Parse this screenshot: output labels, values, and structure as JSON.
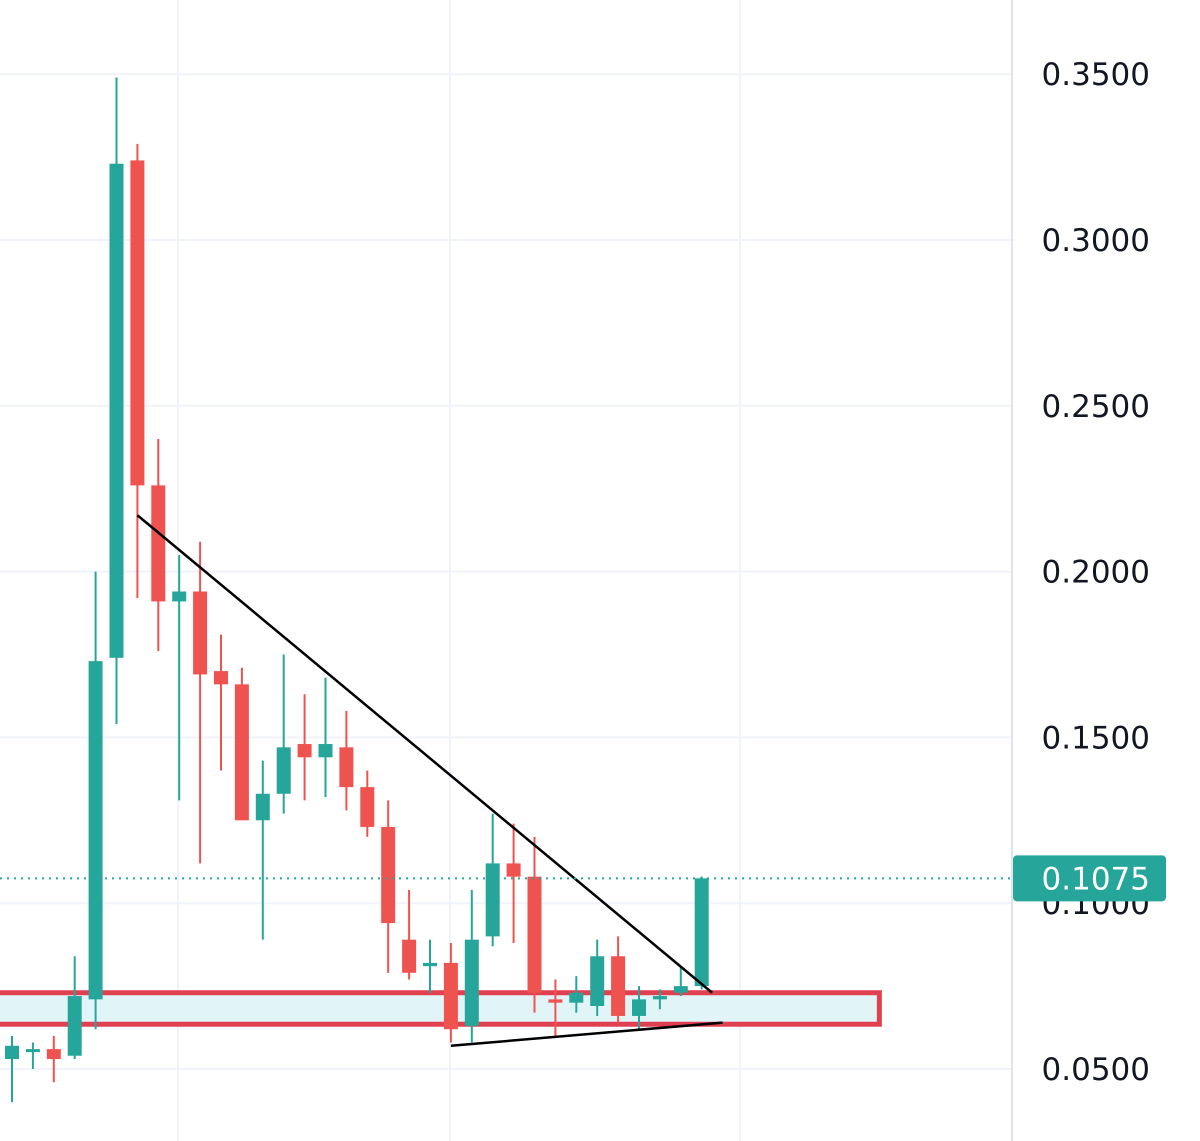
{
  "colors": {
    "up": "#26a69a",
    "down": "#ef5350",
    "grid": "#f0f3fa",
    "axis_line": "#e0e3eb",
    "trendline": "#000000",
    "zone_fill": "#e1f5f9",
    "zone_border": "#e0404f",
    "current_price_line": "#26a69a",
    "badge": "#26a69a"
  },
  "chart_data": {
    "type": "candlestick",
    "y_axis": {
      "position": "right",
      "ylim": [
        0.03,
        0.37
      ],
      "ticks": [
        "0.0500",
        "0.1000",
        "0.1500",
        "0.2000",
        "0.2500",
        "0.3000",
        "0.3500"
      ],
      "tick_values": [
        0.05,
        0.1,
        0.15,
        0.2,
        0.25,
        0.3,
        0.35
      ]
    },
    "current_price": {
      "value": 0.1075,
      "label": "0.1075"
    },
    "candles": [
      {
        "o": 0.053,
        "h": 0.06,
        "l": 0.04,
        "c": 0.057
      },
      {
        "o": 0.056,
        "h": 0.058,
        "l": 0.05,
        "c": 0.056
      },
      {
        "o": 0.056,
        "h": 0.06,
        "l": 0.046,
        "c": 0.053
      },
      {
        "o": 0.054,
        "h": 0.084,
        "l": 0.053,
        "c": 0.072
      },
      {
        "o": 0.071,
        "h": 0.2,
        "l": 0.062,
        "c": 0.173
      },
      {
        "o": 0.174,
        "h": 0.349,
        "l": 0.154,
        "c": 0.323
      },
      {
        "o": 0.324,
        "h": 0.329,
        "l": 0.192,
        "c": 0.226
      },
      {
        "o": 0.226,
        "h": 0.24,
        "l": 0.176,
        "c": 0.191
      },
      {
        "o": 0.191,
        "h": 0.205,
        "l": 0.131,
        "c": 0.194
      },
      {
        "o": 0.194,
        "h": 0.209,
        "l": 0.112,
        "c": 0.169
      },
      {
        "o": 0.17,
        "h": 0.181,
        "l": 0.14,
        "c": 0.166
      },
      {
        "o": 0.166,
        "h": 0.171,
        "l": 0.127,
        "c": 0.125
      },
      {
        "o": 0.125,
        "h": 0.143,
        "l": 0.089,
        "c": 0.133
      },
      {
        "o": 0.133,
        "h": 0.175,
        "l": 0.127,
        "c": 0.147
      },
      {
        "o": 0.148,
        "h": 0.163,
        "l": 0.131,
        "c": 0.144
      },
      {
        "o": 0.144,
        "h": 0.168,
        "l": 0.132,
        "c": 0.148
      },
      {
        "o": 0.147,
        "h": 0.158,
        "l": 0.128,
        "c": 0.135
      },
      {
        "o": 0.135,
        "h": 0.14,
        "l": 0.12,
        "c": 0.123
      },
      {
        "o": 0.123,
        "h": 0.131,
        "l": 0.079,
        "c": 0.094
      },
      {
        "o": 0.089,
        "h": 0.104,
        "l": 0.077,
        "c": 0.079
      },
      {
        "o": 0.081,
        "h": 0.089,
        "l": 0.073,
        "c": 0.082
      },
      {
        "o": 0.082,
        "h": 0.088,
        "l": 0.058,
        "c": 0.062
      },
      {
        "o": 0.063,
        "h": 0.104,
        "l": 0.058,
        "c": 0.089
      },
      {
        "o": 0.09,
        "h": 0.127,
        "l": 0.087,
        "c": 0.112
      },
      {
        "o": 0.112,
        "h": 0.124,
        "l": 0.088,
        "c": 0.108
      },
      {
        "o": 0.108,
        "h": 0.12,
        "l": 0.067,
        "c": 0.073
      },
      {
        "o": 0.071,
        "h": 0.077,
        "l": 0.06,
        "c": 0.07
      },
      {
        "o": 0.07,
        "h": 0.078,
        "l": 0.067,
        "c": 0.073
      },
      {
        "o": 0.069,
        "h": 0.089,
        "l": 0.066,
        "c": 0.084
      },
      {
        "o": 0.084,
        "h": 0.09,
        "l": 0.064,
        "c": 0.066
      },
      {
        "o": 0.066,
        "h": 0.075,
        "l": 0.062,
        "c": 0.071
      },
      {
        "o": 0.071,
        "h": 0.074,
        "l": 0.068,
        "c": 0.072
      },
      {
        "o": 0.073,
        "h": 0.081,
        "l": 0.072,
        "c": 0.075
      },
      {
        "o": 0.075,
        "h": 0.108,
        "l": 0.074,
        "c": 0.1075
      }
    ],
    "annotations": {
      "downtrend_line": {
        "from_candle": 6,
        "from_price": 0.217,
        "to_candle": 33.5,
        "to_price": 0.073
      },
      "support_line": {
        "from_candle": 21,
        "from_price": 0.057,
        "to_candle": 34,
        "to_price": 0.064
      },
      "support_zone": {
        "from_candle": -0.7,
        "to_candle": 41.5,
        "low": 0.0635,
        "high": 0.073
      }
    },
    "grid": true
  }
}
